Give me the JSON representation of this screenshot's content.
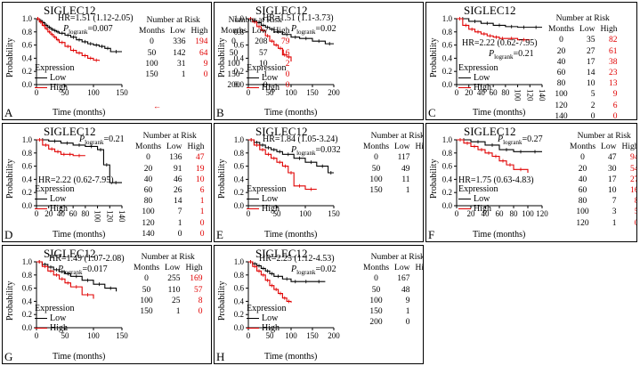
{
  "chart_data": [
    {
      "id": "A",
      "type": "line",
      "title": "SIGLEC12",
      "hr": "HR=1.51 (1.12-2.05)",
      "p_text": "=0.007",
      "xlabel": "Time (months)",
      "ylabel": "Probability",
      "xlim": [
        0,
        150
      ],
      "ylim": [
        0,
        1.0
      ],
      "xticks": [
        0,
        50,
        100,
        150
      ],
      "yticks": [
        0.0,
        0.2,
        0.4,
        0.6,
        0.8,
        1.0
      ],
      "series": [
        {
          "name": "Low",
          "color": "#000000",
          "x": [
            0,
            5,
            10,
            15,
            20,
            25,
            30,
            35,
            40,
            50,
            60,
            70,
            80,
            90,
            100,
            110,
            120,
            130,
            150
          ],
          "y": [
            1.0,
            0.97,
            0.94,
            0.9,
            0.87,
            0.84,
            0.82,
            0.8,
            0.78,
            0.75,
            0.72,
            0.68,
            0.65,
            0.62,
            0.6,
            0.58,
            0.55,
            0.5,
            0.5
          ]
        },
        {
          "name": "High",
          "color": "#e00000",
          "x": [
            0,
            5,
            10,
            15,
            20,
            25,
            30,
            35,
            40,
            50,
            60,
            70,
            80,
            90,
            100,
            110
          ],
          "y": [
            1.0,
            0.95,
            0.9,
            0.85,
            0.8,
            0.76,
            0.72,
            0.68,
            0.64,
            0.58,
            0.52,
            0.48,
            0.44,
            0.4,
            0.37,
            0.36
          ]
        }
      ],
      "risk": {
        "months": [
          "0",
          "50",
          "100",
          "150"
        ],
        "low": [
          "336",
          "142",
          "31",
          "1"
        ],
        "high": [
          "194",
          "64",
          "9",
          "0"
        ]
      }
    },
    {
      "id": "B",
      "type": "line",
      "title": "SIGLEC12",
      "hr": "HR=1.51 (1.1-3.73)",
      "p_text": "=0.02",
      "xlabel": "Time (months)",
      "ylabel": "Probability",
      "xlim": [
        0,
        200
      ],
      "ylim": [
        0,
        1.0
      ],
      "xticks": [
        0,
        50,
        100,
        150,
        200
      ],
      "yticks": [
        0.0,
        0.2,
        0.4,
        0.6,
        0.8,
        1.0
      ],
      "series": [
        {
          "name": "Low",
          "color": "#000000",
          "x": [
            0,
            10,
            20,
            30,
            40,
            50,
            60,
            80,
            100,
            120,
            150,
            180,
            200
          ],
          "y": [
            1.0,
            0.97,
            0.94,
            0.9,
            0.87,
            0.84,
            0.8,
            0.76,
            0.72,
            0.7,
            0.66,
            0.62,
            0.62
          ]
        },
        {
          "name": "High",
          "color": "#e00000",
          "x": [
            0,
            10,
            20,
            30,
            40,
            50,
            60,
            70,
            80,
            90,
            100
          ],
          "y": [
            1.0,
            0.95,
            0.88,
            0.82,
            0.74,
            0.66,
            0.6,
            0.55,
            0.45,
            0.42,
            0.35
          ]
        }
      ],
      "risk": {
        "months": [
          "0",
          "50",
          "100",
          "150",
          "200"
        ],
        "low": [
          "208",
          "57",
          "10",
          "1",
          "0"
        ],
        "high": [
          "79",
          "16",
          "2",
          "0",
          "0"
        ]
      }
    },
    {
      "id": "C",
      "type": "line",
      "title": "SIGLEC12",
      "hr": "HR=2.22 (0.62-7.95)",
      "p_text": "=0.21",
      "xlabel": "Time (months)",
      "ylabel": "Probability",
      "xlim": [
        0,
        140
      ],
      "ylim": [
        0,
        1.0
      ],
      "xticks": [
        0,
        20,
        40,
        60,
        80,
        100,
        120,
        140
      ],
      "yticks": [
        0.0,
        0.2,
        0.4,
        0.6,
        0.8,
        1.0
      ],
      "series": [
        {
          "name": "Low",
          "color": "#000000",
          "x": [
            0,
            20,
            40,
            60,
            80,
            100,
            120,
            140
          ],
          "y": [
            1.0,
            0.96,
            0.93,
            0.9,
            0.88,
            0.87,
            0.87,
            0.87
          ]
        },
        {
          "name": "High",
          "color": "#e00000",
          "x": [
            0,
            10,
            20,
            30,
            40,
            50,
            60,
            70,
            80,
            100,
            120
          ],
          "y": [
            1.0,
            0.9,
            0.84,
            0.8,
            0.77,
            0.74,
            0.72,
            0.7,
            0.7,
            0.68,
            0.68
          ]
        }
      ],
      "risk": {
        "months": [
          "0",
          "20",
          "40",
          "60",
          "80",
          "100",
          "120",
          "140"
        ],
        "low": [
          "35",
          "27",
          "17",
          "14",
          "10",
          "5",
          "2",
          "0"
        ],
        "high": [
          "82",
          "61",
          "38",
          "23",
          "13",
          "9",
          "6",
          "0"
        ]
      }
    },
    {
      "id": "D",
      "type": "line",
      "title": "SIGLEC12",
      "hr": "HR=2.22 (0.62-7.95)",
      "p_text": "=0.21",
      "xlabel": "Time (months)",
      "ylabel": "Probability",
      "xlim": [
        0,
        140
      ],
      "ylim": [
        0,
        1.0
      ],
      "xticks": [
        0,
        20,
        40,
        60,
        80,
        100,
        120,
        140
      ],
      "yticks": [
        0.0,
        0.2,
        0.4,
        0.6,
        0.8,
        1.0
      ],
      "series": [
        {
          "name": "Low",
          "color": "#000000",
          "x": [
            0,
            20,
            40,
            60,
            80,
            100,
            110,
            120,
            140
          ],
          "y": [
            1.0,
            0.98,
            0.95,
            0.92,
            0.9,
            0.85,
            0.62,
            0.35,
            0.35
          ]
        },
        {
          "name": "High",
          "color": "#e00000",
          "x": [
            0,
            10,
            20,
            30,
            40,
            50,
            60,
            80
          ],
          "y": [
            1.0,
            0.92,
            0.86,
            0.82,
            0.78,
            0.78,
            0.76,
            0.76
          ]
        }
      ],
      "risk": {
        "months": [
          "0",
          "20",
          "40",
          "60",
          "80",
          "100",
          "120",
          "140"
        ],
        "low": [
          "136",
          "91",
          "46",
          "26",
          "14",
          "7",
          "1",
          "0"
        ],
        "high": [
          "47",
          "19",
          "10",
          "6",
          "1",
          "1",
          "0",
          "0"
        ]
      }
    },
    {
      "id": "E",
      "type": "line",
      "title": "SIGLEC12",
      "hr": "HR=1.84 (1.05-3.24)",
      "p_text": "=0.032",
      "xlabel": "Time (months)",
      "ylabel": "Probability",
      "xlim": [
        0,
        150
      ],
      "ylim": [
        0,
        1.0
      ],
      "xticks": [
        0,
        50,
        100,
        150
      ],
      "yticks": [
        0.0,
        0.2,
        0.4,
        0.6,
        0.8,
        1.0
      ],
      "series": [
        {
          "name": "Low",
          "color": "#000000",
          "x": [
            0,
            10,
            20,
            30,
            40,
            50,
            60,
            80,
            100,
            120,
            140,
            150
          ],
          "y": [
            1.0,
            0.96,
            0.92,
            0.88,
            0.85,
            0.82,
            0.78,
            0.72,
            0.66,
            0.6,
            0.5,
            0.5
          ]
        },
        {
          "name": "High",
          "color": "#e00000",
          "x": [
            0,
            10,
            20,
            30,
            40,
            50,
            60,
            70,
            80,
            100,
            120
          ],
          "y": [
            1.0,
            0.92,
            0.85,
            0.78,
            0.72,
            0.66,
            0.6,
            0.5,
            0.3,
            0.25,
            0.25
          ]
        }
      ],
      "risk": {
        "months": [
          "0",
          "50",
          "100",
          "150"
        ],
        "low": [
          "117",
          "49",
          "11",
          "1"
        ],
        "high": [
          "51",
          "16",
          "1",
          "0"
        ]
      }
    },
    {
      "id": "F",
      "type": "line",
      "title": "SIGLEC12",
      "hr": "HR=1.75 (0.63-4.83)",
      "p_text": "=0.27",
      "xlabel": "Time (months)",
      "ylabel": "Probability",
      "xlim": [
        0,
        120
      ],
      "ylim": [
        0,
        1.0
      ],
      "xticks": [
        0,
        20,
        40,
        60,
        80,
        100,
        120
      ],
      "yticks": [
        0.0,
        0.2,
        0.4,
        0.6,
        0.8,
        1.0
      ],
      "series": [
        {
          "name": "Low",
          "color": "#000000",
          "x": [
            0,
            20,
            40,
            60,
            80,
            100,
            120
          ],
          "y": [
            1.0,
            0.97,
            0.92,
            0.85,
            0.82,
            0.82,
            0.82
          ]
        },
        {
          "name": "High",
          "color": "#e00000",
          "x": [
            0,
            10,
            20,
            30,
            40,
            50,
            60,
            70,
            80,
            100
          ],
          "y": [
            1.0,
            0.95,
            0.9,
            0.85,
            0.8,
            0.75,
            0.68,
            0.62,
            0.55,
            0.5
          ]
        }
      ],
      "risk": {
        "months": [
          "0",
          "20",
          "40",
          "60",
          "80",
          "100",
          "120"
        ],
        "low": [
          "47",
          "30",
          "17",
          "10",
          "7",
          "3",
          "1"
        ],
        "high": [
          "94",
          "54",
          "27",
          "16",
          "8",
          "5",
          "0"
        ]
      }
    },
    {
      "id": "G",
      "type": "line",
      "title": "SIGLEC12",
      "hr": "HR=1.49 (1.07-2.08)",
      "p_text": "=0.017",
      "xlabel": "Time (months)",
      "ylabel": "Probability",
      "xlim": [
        0,
        150
      ],
      "ylim": [
        0,
        1.0
      ],
      "xticks": [
        0,
        50,
        100,
        150
      ],
      "yticks": [
        0.0,
        0.2,
        0.4,
        0.6,
        0.8,
        1.0
      ],
      "series": [
        {
          "name": "Low",
          "color": "#000000",
          "x": [
            0,
            10,
            20,
            30,
            40,
            50,
            60,
            80,
            100,
            120,
            140
          ],
          "y": [
            1.0,
            0.96,
            0.92,
            0.88,
            0.85,
            0.82,
            0.78,
            0.72,
            0.66,
            0.6,
            0.55
          ]
        },
        {
          "name": "High",
          "color": "#e00000",
          "x": [
            0,
            10,
            20,
            30,
            40,
            50,
            60,
            80,
            100
          ],
          "y": [
            1.0,
            0.93,
            0.86,
            0.8,
            0.74,
            0.68,
            0.62,
            0.5,
            0.44
          ]
        }
      ],
      "risk": {
        "months": [
          "0",
          "50",
          "100",
          "150"
        ],
        "low": [
          "255",
          "110",
          "25",
          "1"
        ],
        "high": [
          "169",
          "57",
          "8",
          "0"
        ]
      }
    },
    {
      "id": "H",
      "type": "line",
      "title": "SIGLEC12",
      "hr": "HR=2.25 (1.12-4.53)",
      "p_text": "=0.02",
      "xlabel": "Time (months)",
      "ylabel": "Probability",
      "xlim": [
        0,
        200
      ],
      "ylim": [
        0,
        1.0
      ],
      "xticks": [
        0,
        50,
        100,
        150,
        200
      ],
      "yticks": [
        0.0,
        0.2,
        0.4,
        0.6,
        0.8,
        1.0
      ],
      "series": [
        {
          "name": "Low",
          "color": "#000000",
          "x": [
            0,
            10,
            20,
            30,
            40,
            50,
            60,
            80,
            100,
            120,
            150,
            180
          ],
          "y": [
            1.0,
            0.97,
            0.94,
            0.9,
            0.86,
            0.82,
            0.78,
            0.74,
            0.7,
            0.7,
            0.7,
            0.7
          ]
        },
        {
          "name": "High",
          "color": "#e00000",
          "x": [
            0,
            10,
            20,
            30,
            40,
            50,
            60,
            70,
            80,
            90,
            100
          ],
          "y": [
            1.0,
            0.93,
            0.86,
            0.8,
            0.72,
            0.64,
            0.58,
            0.52,
            0.45,
            0.4,
            0.38
          ]
        }
      ],
      "risk": {
        "months": [
          "0",
          "50",
          "100",
          "150",
          "200"
        ],
        "low": [
          "167",
          "48",
          "9",
          "1",
          "0"
        ],
        "high": [
          "70",
          "15",
          "2",
          "0",
          "0"
        ]
      }
    }
  ],
  "labels": {
    "p_main": "P",
    "p_sub": "logrank",
    "legend_title": "Expression",
    "risk_title": "Number at Risk",
    "col_months": "Months",
    "col_low": "Low",
    "col_high": "High"
  },
  "stray_mark": "←"
}
